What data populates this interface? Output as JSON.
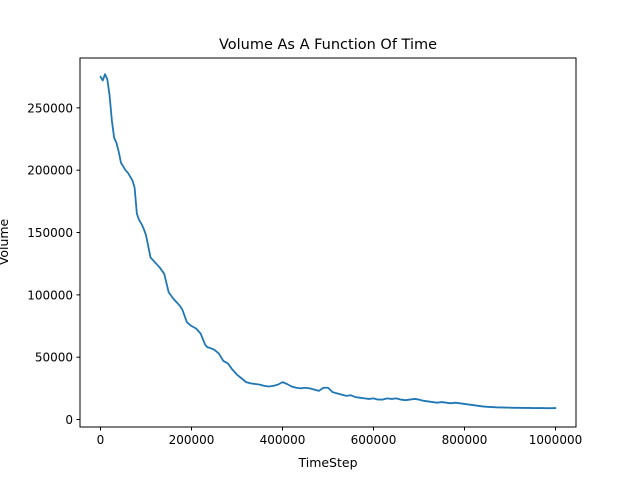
{
  "chart_data": {
    "type": "line",
    "title": "Volume As A Function Of Time",
    "xlabel": "TimeStep",
    "ylabel": "Volume",
    "xlim": [
      -45000,
      1045000
    ],
    "ylim": [
      -6000,
      290000
    ],
    "xticks": [
      0,
      200000,
      400000,
      600000,
      800000,
      1000000
    ],
    "xtick_labels": [
      "0",
      "200000",
      "400000",
      "600000",
      "800000",
      "1000000"
    ],
    "yticks": [
      0,
      50000,
      100000,
      150000,
      200000,
      250000
    ],
    "ytick_labels": [
      "0",
      "50000",
      "100000",
      "150000",
      "200000",
      "250000"
    ],
    "grid": false,
    "series": [
      {
        "color": "#1f77b4",
        "x": [
          0,
          5000,
          10000,
          15000,
          20000,
          25000,
          30000,
          35000,
          40000,
          45000,
          50000,
          55000,
          60000,
          65000,
          70000,
          75000,
          80000,
          85000,
          90000,
          95000,
          100000,
          110000,
          120000,
          125000,
          130000,
          140000,
          150000,
          160000,
          165000,
          170000,
          175000,
          180000,
          190000,
          200000,
          210000,
          220000,
          230000,
          235000,
          240000,
          250000,
          260000,
          270000,
          275000,
          280000,
          290000,
          300000,
          310000,
          320000,
          330000,
          340000,
          350000,
          360000,
          370000,
          380000,
          390000,
          400000,
          410000,
          420000,
          430000,
          440000,
          450000,
          460000,
          470000,
          480000,
          490000,
          500000,
          510000,
          520000,
          530000,
          540000,
          550000,
          560000,
          570000,
          580000,
          590000,
          600000,
          610000,
          620000,
          630000,
          640000,
          650000,
          660000,
          670000,
          680000,
          690000,
          700000,
          710000,
          720000,
          730000,
          740000,
          750000,
          760000,
          770000,
          780000,
          790000,
          800000,
          810000,
          820000,
          830000,
          840000,
          850000,
          860000,
          870000,
          880000,
          890000,
          900000,
          910000,
          920000,
          930000,
          940000,
          950000,
          960000,
          970000,
          980000,
          990000,
          1000000
        ],
        "y": [
          275000,
          272000,
          277000,
          273000,
          260000,
          240000,
          226000,
          222000,
          215000,
          206000,
          203000,
          200000,
          198000,
          195000,
          192000,
          186000,
          165000,
          160000,
          157000,
          153000,
          148000,
          130000,
          126000,
          124000,
          122000,
          117000,
          102000,
          97000,
          95000,
          93000,
          91000,
          88000,
          78000,
          75000,
          73000,
          69000,
          60000,
          58000,
          57500,
          56000,
          53000,
          47000,
          46000,
          45000,
          40000,
          36000,
          33000,
          30000,
          29000,
          28500,
          28000,
          27000,
          26500,
          27000,
          28000,
          30000,
          28500,
          26500,
          25500,
          25000,
          25500,
          25000,
          24000,
          23000,
          25500,
          25500,
          22000,
          21000,
          20000,
          19000,
          19500,
          18000,
          17500,
          17000,
          16500,
          17000,
          16000,
          16000,
          17000,
          16500,
          17000,
          16000,
          15500,
          16000,
          16500,
          16000,
          15000,
          14500,
          14000,
          13500,
          14000,
          13500,
          13000,
          13500,
          13000,
          12500,
          12000,
          11500,
          11000,
          10500,
          10200,
          10000,
          9800,
          9700,
          9600,
          9500,
          9400,
          9400,
          9300,
          9300,
          9200,
          9200,
          9200,
          9100,
          9100,
          9200
        ]
      }
    ]
  }
}
